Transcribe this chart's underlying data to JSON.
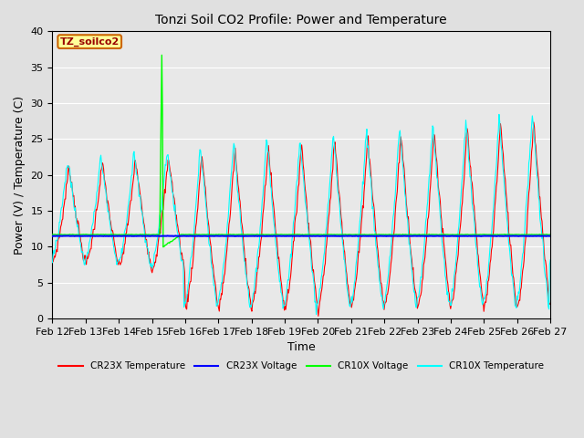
{
  "title": "Tonzi Soil CO2 Profile: Power and Temperature",
  "xlabel": "Time",
  "ylabel": "Power (V) / Temperature (C)",
  "ylim": [
    0,
    40
  ],
  "cr23x_voltage_value": 11.5,
  "cr10x_voltage_value": 11.7,
  "bg_color": "#e0e0e0",
  "plot_bg_color": "#e8e8e8",
  "annotation_text": "TZ_soilco2",
  "annotation_color": "#990000",
  "annotation_bg": "#ffff99",
  "annotation_border": "#cc6600",
  "x_tick_labels": [
    "Feb 12",
    "Feb 13",
    "Feb 14",
    "Feb 15",
    "Feb 16",
    "Feb 17",
    "Feb 18",
    "Feb 19",
    "Feb 20",
    "Feb 21",
    "Feb 22",
    "Feb 23",
    "Feb 24",
    "Feb 25",
    "Feb 26",
    "Feb 27"
  ]
}
